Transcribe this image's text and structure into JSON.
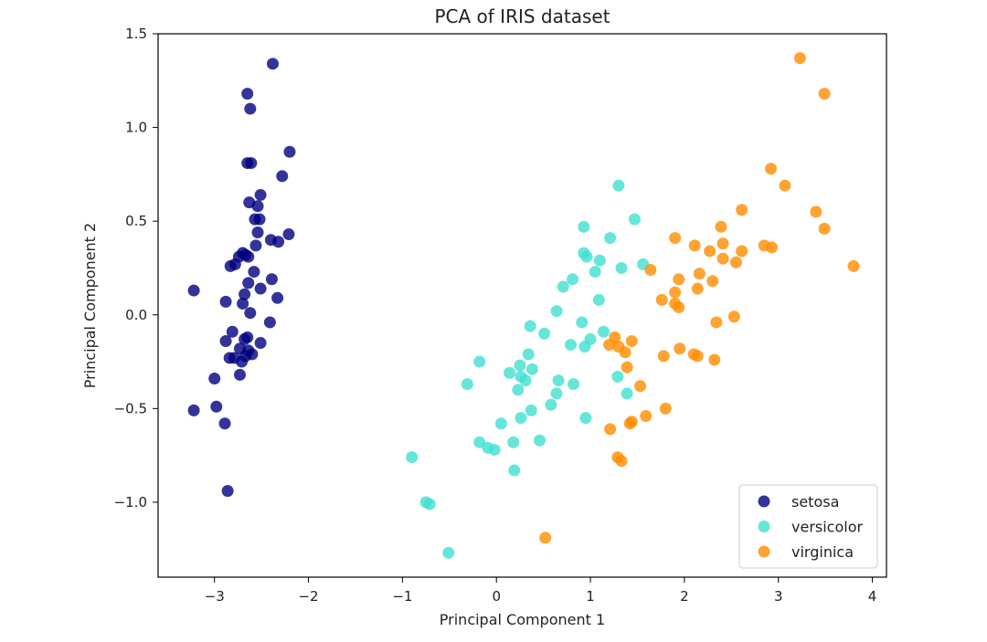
{
  "chart_data": {
    "type": "scatter",
    "title": "PCA of IRIS dataset",
    "xlabel": "Principal Component 1",
    "ylabel": "Principal Component 2",
    "xlim": [
      -3.6,
      4.15
    ],
    "ylim": [
      -1.4,
      1.5
    ],
    "xticks": [
      -3,
      -2,
      -1,
      0,
      1,
      2,
      3,
      4
    ],
    "xtick_labels": [
      "−3",
      "−2",
      "−1",
      "0",
      "1",
      "2",
      "3",
      "4"
    ],
    "yticks": [
      -1.0,
      -0.5,
      0.0,
      0.5,
      1.0,
      1.5
    ],
    "ytick_labels": [
      "−1.0",
      "−0.5",
      "0.0",
      "0.5",
      "1.0",
      "1.5"
    ],
    "grid": false,
    "legend_position": "lower right",
    "series": [
      {
        "name": "setosa",
        "color": "#000080",
        "points": [
          [
            -2.38,
            1.34
          ],
          [
            -2.65,
            1.18
          ],
          [
            -2.62,
            1.1
          ],
          [
            -2.2,
            0.87
          ],
          [
            -2.65,
            0.81
          ],
          [
            -2.61,
            0.81
          ],
          [
            -2.28,
            0.74
          ],
          [
            -2.51,
            0.64
          ],
          [
            -2.63,
            0.6
          ],
          [
            -2.54,
            0.58
          ],
          [
            -2.57,
            0.51
          ],
          [
            -2.52,
            0.51
          ],
          [
            -2.54,
            0.44
          ],
          [
            -2.21,
            0.43
          ],
          [
            -2.4,
            0.4
          ],
          [
            -2.32,
            0.39
          ],
          [
            -2.56,
            0.37
          ],
          [
            -2.7,
            0.33
          ],
          [
            -2.67,
            0.32
          ],
          [
            -2.74,
            0.31
          ],
          [
            -2.64,
            0.31
          ],
          [
            -2.78,
            0.27
          ],
          [
            -2.83,
            0.26
          ],
          [
            -2.58,
            0.23
          ],
          [
            -2.39,
            0.19
          ],
          [
            -2.64,
            0.17
          ],
          [
            -2.51,
            0.14
          ],
          [
            -3.22,
            0.13
          ],
          [
            -2.68,
            0.11
          ],
          [
            -2.33,
            0.09
          ],
          [
            -2.88,
            0.07
          ],
          [
            -2.7,
            0.06
          ],
          [
            -2.62,
            0.01
          ],
          [
            -2.41,
            -0.04
          ],
          [
            -2.81,
            -0.09
          ],
          [
            -2.65,
            -0.12
          ],
          [
            -2.68,
            -0.13
          ],
          [
            -2.88,
            -0.14
          ],
          [
            -2.51,
            -0.15
          ],
          [
            -2.73,
            -0.18
          ],
          [
            -2.64,
            -0.19
          ],
          [
            -2.6,
            -0.21
          ],
          [
            -2.67,
            -0.22
          ],
          [
            -2.84,
            -0.23
          ],
          [
            -2.79,
            -0.23
          ],
          [
            -2.71,
            -0.25
          ],
          [
            -2.73,
            -0.32
          ],
          [
            -3.0,
            -0.34
          ],
          [
            -2.98,
            -0.49
          ],
          [
            -3.22,
            -0.51
          ],
          [
            -2.89,
            -0.58
          ],
          [
            -2.86,
            -0.94
          ]
        ]
      },
      {
        "name": "versicolor",
        "color": "#40e0d0",
        "points": [
          [
            1.3,
            0.69
          ],
          [
            1.47,
            0.51
          ],
          [
            0.93,
            0.47
          ],
          [
            1.21,
            0.41
          ],
          [
            0.93,
            0.33
          ],
          [
            0.96,
            0.31
          ],
          [
            1.1,
            0.29
          ],
          [
            1.33,
            0.25
          ],
          [
            1.56,
            0.27
          ],
          [
            1.05,
            0.23
          ],
          [
            0.81,
            0.19
          ],
          [
            0.71,
            0.15
          ],
          [
            1.09,
            0.08
          ],
          [
            0.64,
            0.02
          ],
          [
            0.91,
            -0.04
          ],
          [
            1.0,
            -0.13
          ],
          [
            1.14,
            -0.09
          ],
          [
            0.36,
            -0.06
          ],
          [
            0.51,
            -0.1
          ],
          [
            0.79,
            -0.16
          ],
          [
            0.94,
            -0.17
          ],
          [
            0.34,
            -0.21
          ],
          [
            0.38,
            -0.29
          ],
          [
            0.25,
            -0.27
          ],
          [
            0.14,
            -0.31
          ],
          [
            0.26,
            -0.33
          ],
          [
            0.31,
            -0.35
          ],
          [
            0.66,
            -0.35
          ],
          [
            0.82,
            -0.37
          ],
          [
            -0.31,
            -0.37
          ],
          [
            1.29,
            -0.33
          ],
          [
            1.39,
            -0.42
          ],
          [
            0.23,
            -0.4
          ],
          [
            0.64,
            -0.42
          ],
          [
            -0.18,
            -0.25
          ],
          [
            0.58,
            -0.48
          ],
          [
            0.37,
            -0.51
          ],
          [
            0.95,
            -0.55
          ],
          [
            0.26,
            -0.55
          ],
          [
            0.05,
            -0.58
          ],
          [
            0.46,
            -0.67
          ],
          [
            0.18,
            -0.68
          ],
          [
            -0.18,
            -0.68
          ],
          [
            -0.09,
            -0.71
          ],
          [
            -0.02,
            -0.72
          ],
          [
            0.19,
            -0.83
          ],
          [
            -0.9,
            -0.76
          ],
          [
            -0.75,
            -1.0
          ],
          [
            -0.71,
            -1.01
          ],
          [
            -0.51,
            -1.27
          ]
        ]
      },
      {
        "name": "virginica",
        "color": "#ff8c00",
        "points": [
          [
            3.23,
            1.37
          ],
          [
            3.49,
            1.18
          ],
          [
            2.92,
            0.78
          ],
          [
            3.07,
            0.69
          ],
          [
            2.61,
            0.56
          ],
          [
            3.4,
            0.55
          ],
          [
            2.39,
            0.47
          ],
          [
            3.49,
            0.46
          ],
          [
            1.9,
            0.41
          ],
          [
            2.11,
            0.37
          ],
          [
            2.41,
            0.38
          ],
          [
            2.85,
            0.37
          ],
          [
            2.93,
            0.36
          ],
          [
            2.61,
            0.34
          ],
          [
            2.27,
            0.34
          ],
          [
            2.41,
            0.3
          ],
          [
            2.55,
            0.28
          ],
          [
            3.8,
            0.26
          ],
          [
            1.64,
            0.24
          ],
          [
            2.16,
            0.22
          ],
          [
            1.94,
            0.19
          ],
          [
            2.3,
            0.18
          ],
          [
            2.14,
            0.14
          ],
          [
            1.9,
            0.12
          ],
          [
            1.76,
            0.08
          ],
          [
            1.9,
            0.06
          ],
          [
            1.94,
            0.04
          ],
          [
            2.53,
            -0.01
          ],
          [
            2.34,
            -0.04
          ],
          [
            1.26,
            -0.12
          ],
          [
            1.44,
            -0.14
          ],
          [
            1.2,
            -0.16
          ],
          [
            1.3,
            -0.17
          ],
          [
            1.95,
            -0.18
          ],
          [
            1.37,
            -0.2
          ],
          [
            2.1,
            -0.21
          ],
          [
            2.14,
            -0.22
          ],
          [
            1.78,
            -0.22
          ],
          [
            2.32,
            -0.24
          ],
          [
            1.39,
            -0.28
          ],
          [
            1.53,
            -0.38
          ],
          [
            1.8,
            -0.5
          ],
          [
            1.59,
            -0.54
          ],
          [
            1.42,
            -0.58
          ],
          [
            1.44,
            -0.57
          ],
          [
            1.21,
            -0.61
          ],
          [
            1.29,
            -0.76
          ],
          [
            1.33,
            -0.78
          ],
          [
            0.52,
            -1.19
          ]
        ]
      }
    ]
  }
}
